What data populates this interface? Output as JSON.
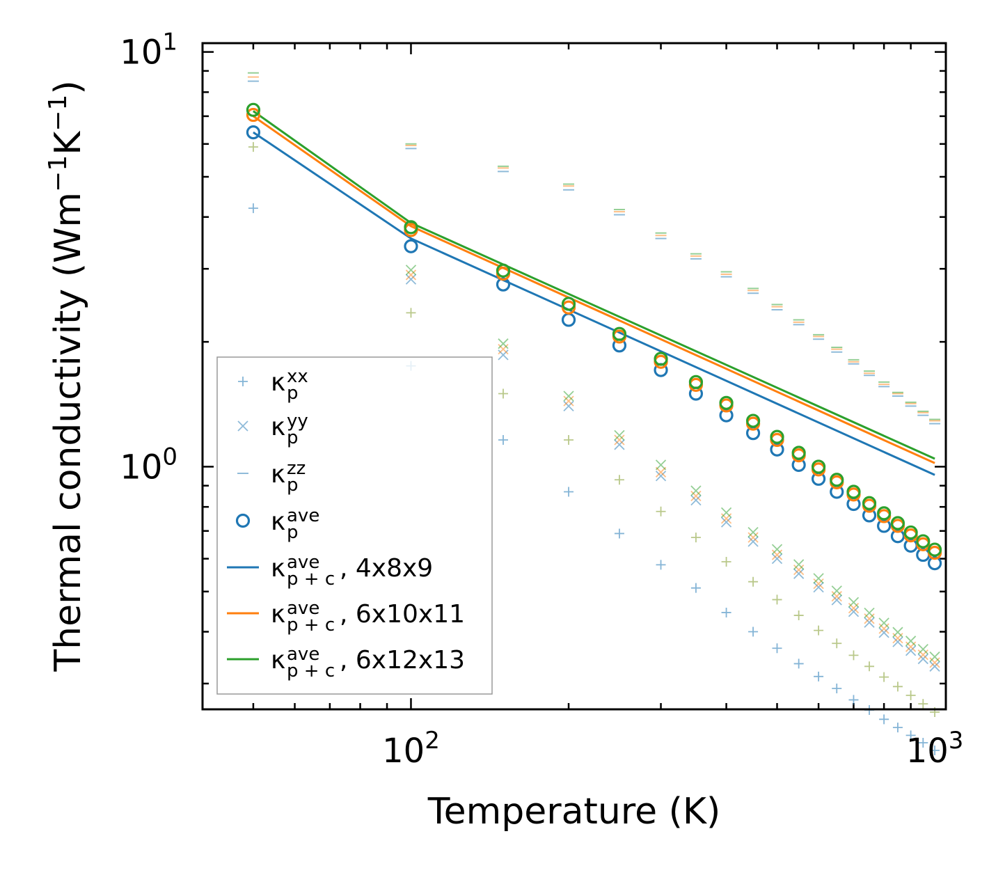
{
  "chart_data": {
    "type": "scatter",
    "xscale": "log",
    "yscale": "log",
    "xlabel": "Temperature (K)",
    "ylabel_parts": {
      "base": "Thermal conductivity (Wm",
      "sup1": "−1",
      "mid": "K",
      "sup2": "−1",
      "end": ")"
    },
    "xlim": [
      40,
      1050
    ],
    "ylim": [
      0.26,
      10.5
    ],
    "x_ticks": [
      {
        "value": 100,
        "base": "10",
        "exp": "2"
      },
      {
        "value": 1000,
        "base": "10",
        "exp": "3"
      }
    ],
    "y_ticks": [
      {
        "value": 1,
        "base": "10",
        "exp": "0"
      },
      {
        "value": 10,
        "base": "10",
        "exp": "1"
      }
    ],
    "x": [
      50,
      100,
      150,
      200,
      250,
      300,
      350,
      400,
      450,
      500,
      550,
      600,
      650,
      700,
      750,
      800,
      850,
      900,
      950,
      1000
    ],
    "colors": {
      "blue": "#1f77b4",
      "orange": "#ff7f0e",
      "green": "#2ca02c",
      "olive": "#7f9a2a"
    },
    "kxx_groups": [
      {
        "mesh": "4x8x9",
        "color": "#1f77b4",
        "values": [
          4.2,
          1.75,
          1.16,
          0.87,
          0.69,
          0.58,
          0.51,
          0.445,
          0.4,
          0.365,
          0.335,
          0.312,
          0.292,
          0.274,
          0.259,
          0.246,
          0.235,
          0.225,
          0.216,
          0.207
        ]
      },
      {
        "mesh": "6x10x11",
        "color": "#7f9a2a",
        "values": [
          5.9,
          2.35,
          1.5,
          1.16,
          0.93,
          0.78,
          0.675,
          0.59,
          0.528,
          0.478,
          0.438,
          0.403,
          0.375,
          0.351,
          0.33,
          0.311,
          0.295,
          0.281,
          0.268,
          0.256
        ]
      }
    ],
    "kyy_groups": [
      {
        "mesh": "4x8x9",
        "color": "#1f77b4",
        "values": [
          null,
          2.83,
          1.86,
          1.4,
          1.13,
          0.95,
          0.83,
          0.735,
          0.66,
          0.6,
          0.552,
          0.512,
          0.477,
          0.447,
          0.421,
          0.398,
          0.378,
          0.36,
          0.344,
          0.33
        ]
      },
      {
        "mesh": "6x10x11",
        "color": "#ff7f0e",
        "values": [
          null,
          2.9,
          1.92,
          1.44,
          1.16,
          0.97,
          0.85,
          0.75,
          0.675,
          0.613,
          0.564,
          0.522,
          0.487,
          0.456,
          0.43,
          0.407,
          0.386,
          0.368,
          0.352,
          0.337
        ]
      },
      {
        "mesh": "6x12x13",
        "color": "#2ca02c",
        "values": [
          null,
          2.98,
          1.98,
          1.48,
          1.19,
          1.01,
          0.875,
          0.775,
          0.695,
          0.632,
          0.581,
          0.538,
          0.502,
          0.471,
          0.444,
          0.42,
          0.399,
          0.38,
          0.363,
          0.348
        ]
      }
    ],
    "kzz_groups": [
      {
        "mesh": "4x8x9",
        "color": "#1f77b4",
        "values": [
          8.5,
          5.85,
          5.15,
          4.65,
          4.05,
          3.55,
          3.17,
          2.87,
          2.62,
          2.39,
          2.2,
          2.03,
          1.89,
          1.77,
          1.66,
          1.56,
          1.48,
          1.4,
          1.33,
          1.27
        ]
      },
      {
        "mesh": "6x10x11",
        "color": "#ff7f0e",
        "values": [
          8.7,
          5.95,
          5.25,
          4.75,
          4.12,
          3.61,
          3.22,
          2.91,
          2.66,
          2.43,
          2.23,
          2.06,
          1.92,
          1.79,
          1.68,
          1.58,
          1.5,
          1.42,
          1.35,
          1.29
        ]
      },
      {
        "mesh": "6x12x13",
        "color": "#2ca02c",
        "values": [
          8.9,
          6.0,
          5.3,
          4.8,
          4.17,
          3.66,
          3.26,
          2.95,
          2.69,
          2.46,
          2.26,
          2.08,
          1.94,
          1.81,
          1.7,
          1.6,
          1.51,
          1.43,
          1.36,
          1.3
        ]
      }
    ],
    "kave_groups": [
      {
        "mesh": "4x8x9",
        "color": "#1f77b4",
        "values": [
          6.4,
          3.4,
          2.75,
          2.26,
          1.96,
          1.71,
          1.5,
          1.33,
          1.205,
          1.1,
          1.01,
          0.935,
          0.87,
          0.813,
          0.763,
          0.72,
          0.68,
          0.645,
          0.613,
          0.585
        ]
      },
      {
        "mesh": "6x10x11",
        "color": "#ff7f0e",
        "values": [
          7.05,
          3.72,
          2.92,
          2.42,
          2.06,
          1.79,
          1.575,
          1.405,
          1.27,
          1.16,
          1.065,
          0.985,
          0.917,
          0.857,
          0.805,
          0.76,
          0.72,
          0.683,
          0.65,
          0.62
        ]
      },
      {
        "mesh": "6x12x13",
        "color": "#2ca02c",
        "values": [
          7.25,
          3.78,
          2.97,
          2.47,
          2.09,
          1.82,
          1.6,
          1.425,
          1.29,
          1.18,
          1.08,
          1.0,
          0.93,
          0.87,
          0.817,
          0.772,
          0.731,
          0.694,
          0.661,
          0.631
        ]
      }
    ],
    "lines": [
      {
        "label": "4x8x9",
        "color": "#1f77b4",
        "values": [
          6.4,
          3.55,
          null,
          null,
          null,
          null,
          null,
          null,
          null,
          null,
          null,
          null,
          null,
          null,
          null,
          null,
          null,
          null,
          null,
          0.955
        ]
      },
      {
        "label": "6x10x11",
        "color": "#ff7f0e",
        "values": [
          7.0,
          3.8,
          null,
          null,
          null,
          null,
          null,
          null,
          null,
          null,
          null,
          null,
          null,
          null,
          null,
          null,
          null,
          null,
          null,
          1.02
        ]
      },
      {
        "label": "6x12x13",
        "color": "#2ca02c",
        "values": [
          7.2,
          3.87,
          null,
          null,
          null,
          null,
          null,
          null,
          null,
          null,
          null,
          null,
          null,
          null,
          null,
          null,
          null,
          null,
          null,
          1.045
        ]
      }
    ],
    "legend": {
      "placement": "lower-left",
      "entries": [
        {
          "marker": "plus",
          "color": "#1f77b4",
          "k": "κ",
          "sub": "p",
          "sup": "xx",
          "text": ""
        },
        {
          "marker": "cross",
          "color": "#1f77b4",
          "k": "κ",
          "sub": "p",
          "sup": "yy",
          "text": ""
        },
        {
          "marker": "dash",
          "color": "#1f77b4",
          "k": "κ",
          "sub": "p",
          "sup": "zz",
          "text": ""
        },
        {
          "marker": "circle",
          "color": "#1f77b4",
          "k": "κ",
          "sub": "p",
          "sup": "ave",
          "text": ""
        },
        {
          "marker": "line",
          "color": "#1f77b4",
          "k": "κ",
          "sub": "p + c",
          "sup": "ave",
          "text": ", 4x8x9"
        },
        {
          "marker": "line",
          "color": "#ff7f0e",
          "k": "κ",
          "sub": "p + c",
          "sup": "ave",
          "text": ", 6x10x11"
        },
        {
          "marker": "line",
          "color": "#2ca02c",
          "k": "κ",
          "sub": "p + c",
          "sup": "ave",
          "text": ", 6x12x13"
        }
      ]
    }
  }
}
